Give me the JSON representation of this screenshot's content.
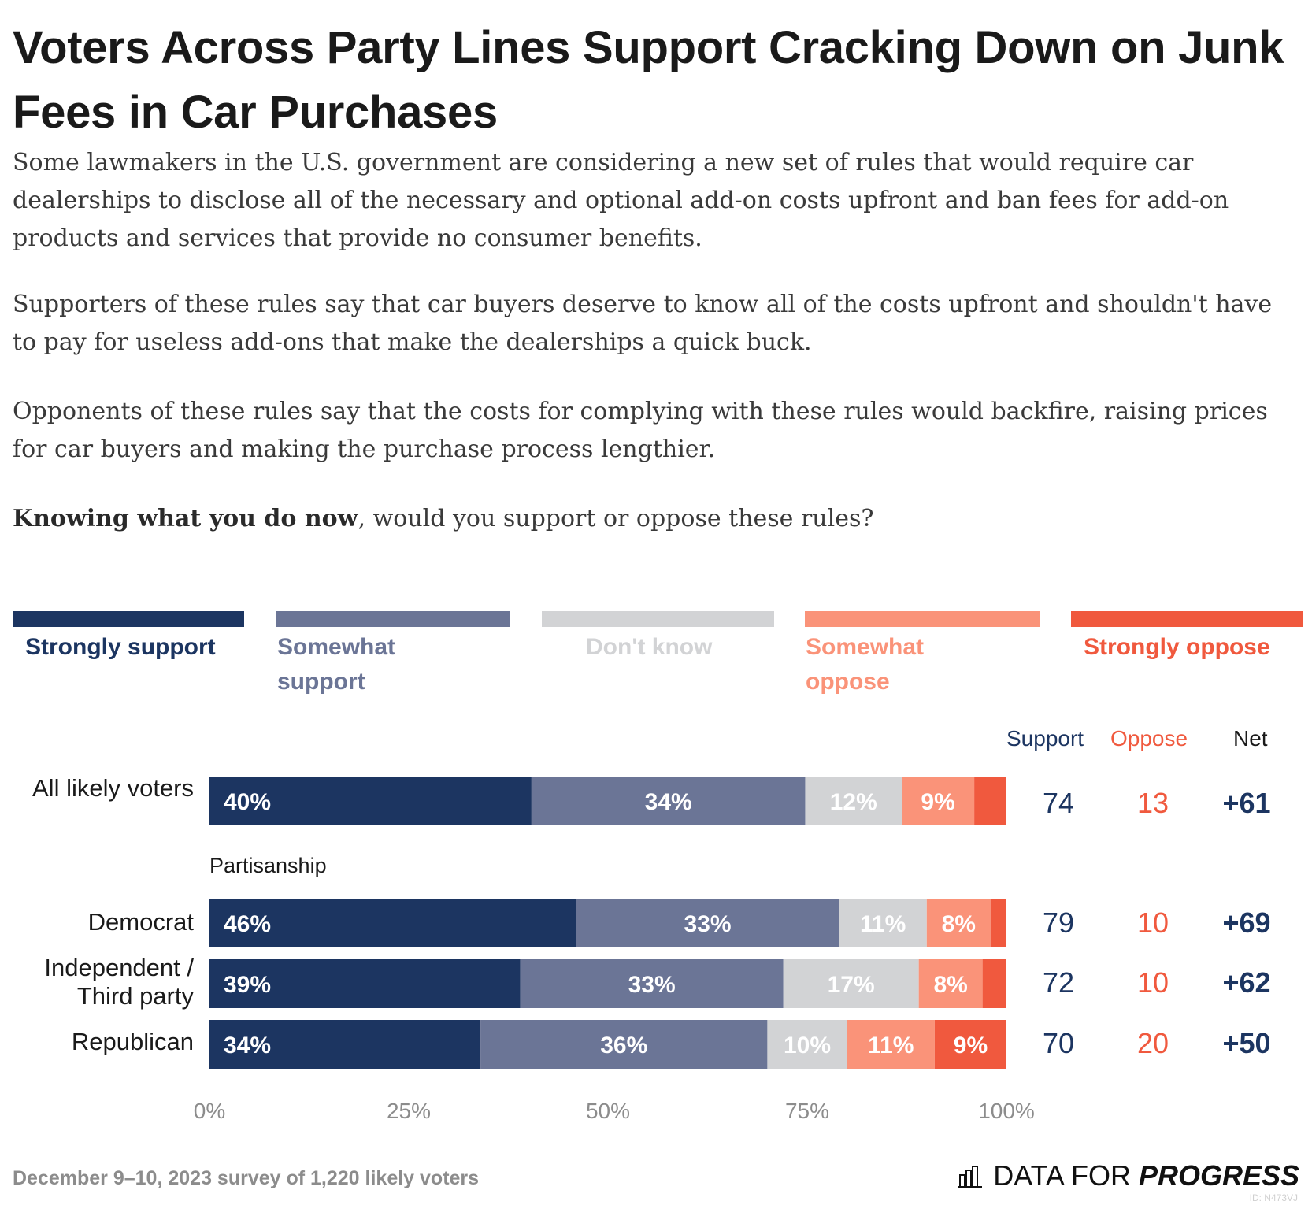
{
  "title": "Voters Across Party Lines Support Cracking Down on Junk Fees in Car Purchases",
  "paragraphs": [
    "Some lawmakers in the U.S. government are considering a new set of rules that would require car dealerships to disclose all of the necessary and optional add-on costs upfront and ban fees for add-on products and services that provide no consumer benefits.",
    "Supporters of these rules say that car buyers deserve to know all of the costs upfront and shouldn't have to pay for useless add-ons that make the dealerships a quick buck.",
    "Opponents of these rules say that the costs for complying with these rules would backfire, raising prices for car buyers and making the purchase process lengthier."
  ],
  "question_bold": "Knowing what you do now",
  "question_rest": ", would you support or oppose these rules?",
  "legend": [
    {
      "label": "Strongly support",
      "color": "#1c3561"
    },
    {
      "label": "Somewhat support",
      "color": "#6b7596"
    },
    {
      "label": "Don't know",
      "color": "#d2d3d5"
    },
    {
      "label": "Somewhat oppose",
      "color": "#fa9379"
    },
    {
      "label": "Strongly oppose",
      "color": "#f0593e"
    }
  ],
  "columns": {
    "support": "Support",
    "oppose": "Oppose",
    "net": "Net"
  },
  "colors": {
    "support": "#1c3561",
    "oppose": "#f0593e",
    "net": "#1a1a1a"
  },
  "subgroup_label": "Partisanship",
  "footer": "December 9–10, 2023 survey of 1,220 likely voters",
  "brand": {
    "part1": "DATA FOR",
    "part2": "PROGRESS"
  },
  "id_tag": "ID: N473VJ",
  "chart_data": {
    "type": "bar",
    "orientation": "horizontal-stacked-100",
    "series": [
      {
        "name": "Strongly support",
        "values": [
          40,
          46,
          39,
          34
        ]
      },
      {
        "name": "Somewhat support",
        "values": [
          34,
          33,
          33,
          36
        ]
      },
      {
        "name": "Don't know",
        "values": [
          12,
          11,
          17,
          10
        ]
      },
      {
        "name": "Somewhat oppose",
        "values": [
          9,
          8,
          8,
          11
        ]
      },
      {
        "name": "Strongly oppose",
        "values": [
          4,
          2,
          3,
          9
        ]
      }
    ],
    "categories": [
      "All likely voters",
      "Democrat",
      "Independent / Third party",
      "Republican"
    ],
    "support": [
      74,
      79,
      72,
      70
    ],
    "oppose": [
      13,
      10,
      10,
      20
    ],
    "net": [
      "+61",
      "+69",
      "+62",
      "+50"
    ],
    "x_ticks": [
      "0%",
      "25%",
      "50%",
      "75%",
      "100%"
    ],
    "xlim": [
      0,
      100
    ],
    "legend_position": "top"
  }
}
